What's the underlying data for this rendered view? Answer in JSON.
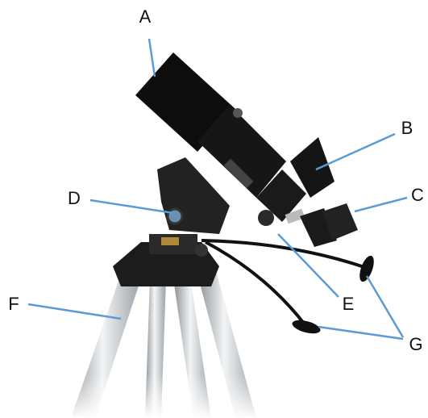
{
  "callouts": [
    {
      "label": "A"
    },
    {
      "label": "B"
    },
    {
      "label": "C"
    },
    {
      "label": "D"
    },
    {
      "label": "E"
    },
    {
      "label": "F"
    },
    {
      "label": "G"
    }
  ]
}
